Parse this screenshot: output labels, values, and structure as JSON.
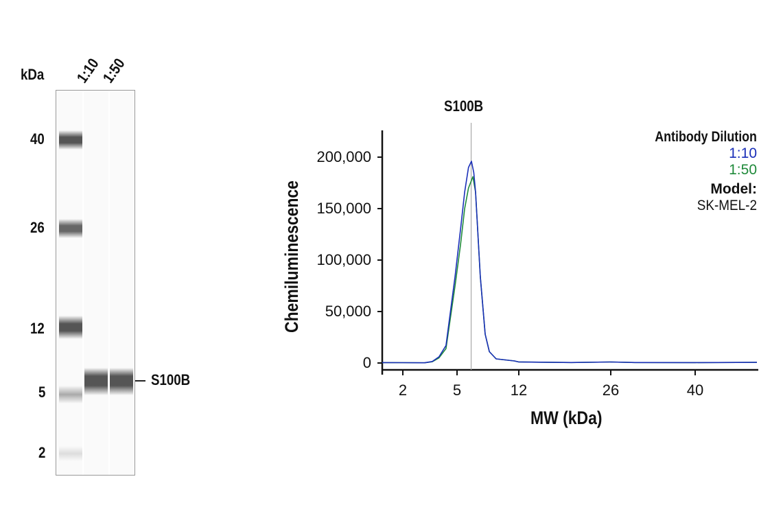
{
  "blot": {
    "unit_label": "kDa",
    "lanes": [
      "1:10",
      "1:50"
    ],
    "markers": [
      {
        "kDa": "40"
      },
      {
        "kDa": "26"
      },
      {
        "kDa": "12"
      },
      {
        "kDa": "5"
      },
      {
        "kDa": "2"
      }
    ],
    "band_label": "S100B"
  },
  "chart_data": {
    "type": "line",
    "title": "S100B",
    "xlabel": "MW (kDa)",
    "ylabel": "Chemiluminescence",
    "xticks": [
      2,
      5,
      12,
      26,
      40
    ],
    "xlim": [
      0.86,
      50.2
    ],
    "yticks": [
      0,
      50000,
      100000,
      150000,
      200000
    ],
    "ytick_labels": [
      "0",
      "50,000",
      "100,000",
      "150,000",
      "200,000"
    ],
    "ylim": [
      0,
      200000
    ],
    "reference_line_kDa": 6.6,
    "legend": {
      "title": "Antibody Dilution",
      "model_label": "Model:",
      "model": "SK-MEL-2",
      "placement": "top-right"
    },
    "series": [
      {
        "name": "1:10",
        "color": "#1a2fb8",
        "points": [
          [
            0.86,
            400
          ],
          [
            2,
            300
          ],
          [
            3.2,
            200
          ],
          [
            3.63,
            1500
          ],
          [
            4.0,
            6000
          ],
          [
            4.39,
            17000
          ],
          [
            4.89,
            84000
          ],
          [
            5.4,
            130000
          ],
          [
            5.86,
            166000
          ],
          [
            6.3,
            190000
          ],
          [
            6.63,
            196000
          ],
          [
            6.9,
            185000
          ],
          [
            7.1,
            166000
          ],
          [
            7.64,
            84000
          ],
          [
            8.19,
            28000
          ],
          [
            8.66,
            11000
          ],
          [
            9.43,
            4000
          ],
          [
            11.5,
            2000
          ],
          [
            12,
            1000
          ],
          [
            20,
            500
          ],
          [
            26,
            1000
          ],
          [
            30,
            500
          ],
          [
            40,
            400
          ],
          [
            50.2,
            600
          ]
        ]
      },
      {
        "name": "1:50",
        "color": "#1f8a3a",
        "points": [
          [
            0.86,
            400
          ],
          [
            2,
            300
          ],
          [
            3.2,
            200
          ],
          [
            3.63,
            1200
          ],
          [
            4.0,
            5000
          ],
          [
            4.39,
            14000
          ],
          [
            4.89,
            75000
          ],
          [
            5.4,
            115000
          ],
          [
            5.86,
            150000
          ],
          [
            6.3,
            170000
          ],
          [
            6.8,
            181000
          ],
          [
            7.1,
            166000
          ],
          [
            7.64,
            84000
          ],
          [
            8.19,
            28000
          ],
          [
            8.66,
            11000
          ],
          [
            9.43,
            4000
          ],
          [
            11.5,
            2000
          ],
          [
            12,
            1000
          ],
          [
            20,
            500
          ],
          [
            26,
            1000
          ],
          [
            30,
            500
          ],
          [
            40,
            400
          ],
          [
            50.2,
            600
          ]
        ]
      }
    ]
  }
}
